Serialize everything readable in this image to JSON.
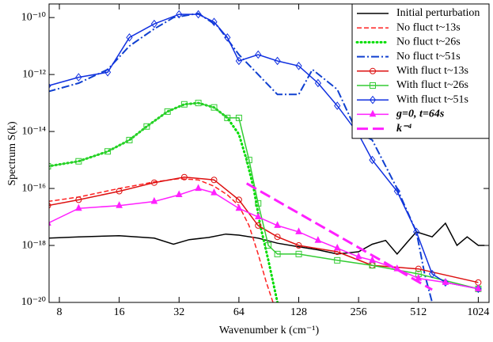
{
  "chart_data": {
    "type": "line",
    "x_label": "Wavenumber  k  (cm⁻¹)",
    "y_label": "Spectrum  S(k)",
    "log_x": true,
    "log_y": true,
    "legend": "upper right",
    "xlim": [
      7.1,
      1160
    ],
    "xticks": [
      8,
      16,
      32,
      64,
      128,
      256,
      512,
      1024
    ],
    "ylim": [
      1e-20,
      3e-10
    ],
    "yticks": [
      {
        "value": 1e-20,
        "label": "10⁻²⁰"
      },
      {
        "value": 1e-18,
        "label": "10⁻¹⁸"
      },
      {
        "value": 1e-16,
        "label": "10⁻¹⁶"
      },
      {
        "value": 1e-14,
        "label": "10⁻¹⁴"
      },
      {
        "value": 1e-12,
        "label": "10⁻¹²"
      },
      {
        "value": 1e-10,
        "label": "10⁻¹⁰"
      }
    ],
    "series": [
      {
        "name": "Initial perturbation",
        "color": "#000000",
        "dash": "solid",
        "marker": "none",
        "x": [
          7,
          10,
          16,
          24,
          30,
          36,
          45,
          55,
          64,
          80,
          100,
          128,
          160,
          200,
          256,
          300,
          350,
          400,
          450,
          500,
          600,
          700,
          800,
          900,
          1024,
          1100
        ],
        "values": [
          1.8e-18,
          2e-18,
          2.2e-18,
          1.8e-18,
          1.1e-18,
          1.6e-18,
          1.9e-18,
          2.5e-18,
          2.3e-18,
          1.8e-18,
          1.2e-18,
          9e-19,
          7e-19,
          5e-19,
          6e-19,
          1.1e-18,
          1.5e-18,
          5e-19,
          1.3e-18,
          3e-18,
          2e-18,
          6e-18,
          1e-18,
          2e-18,
          1e-18,
          1e-18
        ]
      },
      {
        "name": "No fluct t~13s",
        "color": "#ff2020",
        "dash": "dashed",
        "marker": "none",
        "x": [
          7,
          10,
          16,
          24,
          32,
          40,
          48,
          56,
          64,
          72,
          80,
          88,
          95
        ],
        "values": [
          3.5e-17,
          5e-17,
          1e-16,
          1.7e-16,
          2.2e-16,
          2e-16,
          1.2e-16,
          6e-17,
          2.5e-17,
          5e-18,
          5e-19,
          5e-20,
          1e-20
        ]
      },
      {
        "name": "No fluct t~26s",
        "color": "#00dd00",
        "dash": "dotted",
        "marker": "none",
        "x": [
          7,
          10,
          14,
          18,
          22,
          28,
          34,
          40,
          48,
          56,
          64,
          70,
          76,
          82,
          90,
          100
        ],
        "values": [
          6e-16,
          9e-16,
          2e-15,
          5e-15,
          1.5e-14,
          5e-14,
          9e-14,
          1e-13,
          7e-14,
          3e-14,
          8e-15,
          1e-15,
          1e-16,
          5e-18,
          3e-19,
          1e-20
        ]
      },
      {
        "name": "No fluct t~51s",
        "color": "#1040d0",
        "dash": "dashdot",
        "marker": "none",
        "x": [
          7,
          10,
          14,
          18,
          24,
          30,
          40,
          50,
          64,
          80,
          100,
          128,
          150,
          200,
          250,
          300,
          400,
          500,
          550,
          600
        ],
        "values": [
          2.5e-13,
          5e-13,
          1.5e-12,
          1e-11,
          4e-11,
          1e-10,
          1.4e-10,
          5e-11,
          5e-12,
          1e-12,
          2e-13,
          2e-13,
          1.5e-12,
          3e-13,
          1e-14,
          5e-15,
          1e-16,
          3e-18,
          1e-19,
          1e-20
        ]
      },
      {
        "name": "With fluct t~13s",
        "color": "#dd1010",
        "dash": "solid",
        "marker": "circle",
        "x": [
          7,
          10,
          16,
          24,
          34,
          48,
          64,
          80,
          100,
          128,
          200,
          300,
          512,
          1024
        ],
        "values": [
          2.5e-17,
          4e-17,
          8e-17,
          1.6e-16,
          2.5e-16,
          2e-16,
          4e-17,
          5e-18,
          2e-18,
          1e-18,
          6e-19,
          2e-19,
          1.5e-19,
          5e-20
        ]
      },
      {
        "name": "With fluct t~26s",
        "color": "#33cc33",
        "dash": "solid",
        "marker": "square",
        "x": [
          7,
          10,
          14,
          18,
          22,
          28,
          34,
          40,
          48,
          56,
          64,
          72,
          80,
          90,
          100,
          128,
          200,
          300,
          512,
          1024
        ],
        "values": [
          6e-16,
          9e-16,
          2e-15,
          5e-15,
          1.5e-14,
          5e-14,
          9e-14,
          1e-13,
          7e-14,
          3e-14,
          3e-14,
          1e-15,
          3e-17,
          1e-18,
          5e-19,
          5e-19,
          3e-19,
          2e-19,
          1e-19,
          3e-20
        ]
      },
      {
        "name": "With fluct t~51s",
        "color": "#1030e0",
        "dash": "solid",
        "marker": "diamond",
        "x": [
          7,
          10,
          14,
          18,
          24,
          32,
          40,
          48,
          56,
          64,
          80,
          100,
          128,
          160,
          200,
          256,
          300,
          400,
          500,
          600,
          700,
          1024
        ],
        "values": [
          4e-13,
          8e-13,
          1.2e-12,
          2e-11,
          6e-11,
          1.3e-10,
          1.3e-10,
          7e-11,
          2e-11,
          3e-12,
          5e-12,
          3e-12,
          2e-12,
          5e-13,
          8e-14,
          8e-15,
          1e-15,
          8e-17,
          3e-18,
          1e-19,
          5e-20,
          3e-20
        ]
      },
      {
        "name": "g=0,  t=64s",
        "color": "#ff20ff",
        "dash": "solid",
        "marker": "triangle",
        "x": [
          7,
          10,
          16,
          24,
          32,
          40,
          48,
          64,
          80,
          100,
          128,
          160,
          200,
          256,
          300,
          400,
          512,
          700,
          1024
        ],
        "values": [
          6e-18,
          2e-17,
          2.5e-17,
          3.5e-17,
          6e-17,
          1e-16,
          7e-17,
          2e-17,
          1e-17,
          5e-18,
          3e-18,
          1.5e-18,
          8e-19,
          4e-19,
          3e-19,
          1.5e-19,
          7e-20,
          5e-20,
          3e-20
        ]
      },
      {
        "name": "k⁻⁴",
        "color": "#ff20ff",
        "dash": "longdash",
        "marker": "none",
        "x": [
          70,
          600
        ],
        "values": [
          1.5e-16,
          2.8e-20
        ]
      }
    ]
  }
}
